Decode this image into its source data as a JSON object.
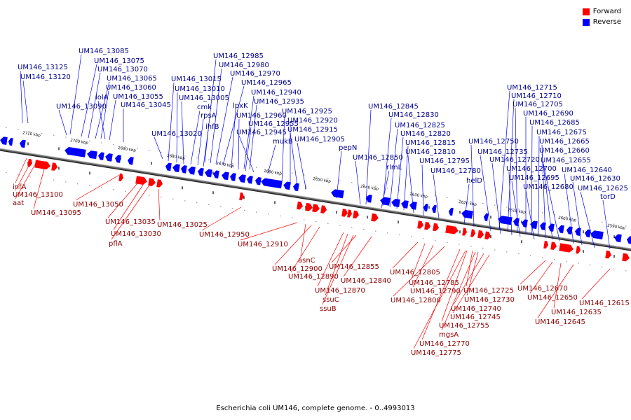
{
  "caption": "Escherichia coli UM146, complete genome. - 0..4993013",
  "legend": {
    "forward": {
      "label": "Forward",
      "color": "#ff0000"
    },
    "reverse": {
      "label": "Reverse",
      "color": "#0000ff"
    }
  },
  "colors": {
    "forward": "#ff0000",
    "reverse": "#0000ff",
    "backbone": "#666666"
  },
  "tick_labels": [
    "2710 kbp",
    "2700 kbp",
    "2690 kbp",
    "2680 kbp",
    "2670 kbp",
    "2660 kbp",
    "2650 kbp",
    "2640 kbp",
    "2630 kbp",
    "2620 kbp",
    "2610 kbp",
    "2600 kbp",
    "2590 kbp"
  ],
  "forward_labels": [
    "infA",
    "UM146_13100",
    "aat",
    "UM146_13095",
    "UM146_13050",
    "UM146_13035",
    "UM146_13030",
    "pflA",
    "UM146_13025",
    "UM146_12950",
    "UM146_12910",
    "asnC",
    "UM146_12900",
    "UM146_12890",
    "UM146_12870",
    "ssuC",
    "ssuB",
    "UM146_12855",
    "UM146_12840",
    "UM146_12805",
    "UM146_12785",
    "UM146_12790",
    "UM146_12800",
    "UM146_12725",
    "UM146_12730",
    "UM146_12740",
    "UM146_12745",
    "UM146_12755",
    "mgsA",
    "UM146_12770",
    "UM146_12775",
    "UM146_12670",
    "UM146_12650",
    "UM146_12635",
    "UM146_12645",
    "UM146_12615"
  ],
  "reverse_labels": [
    "UM146_13125",
    "UM146_13120",
    "UM146_13085",
    "UM146_13075",
    "UM146_13070",
    "UM146_13065",
    "UM146_13060",
    "lolA",
    "UM146_13055",
    "UM146_13090",
    "UM146_13045",
    "UM146_13020",
    "UM146_12985",
    "UM146_12980",
    "UM146_12970",
    "UM146_12965",
    "UM146_13015",
    "UM146_13010",
    "UM146_13005",
    "cmk",
    "rpsA",
    "ihfB",
    "lpxK",
    "UM146_12940",
    "UM146_12935",
    "UM146_12960",
    "UM146_12955",
    "UM146_12945",
    "mukB",
    "UM146_12925",
    "UM146_12920",
    "UM146_12915",
    "UM146_12905",
    "pepN",
    "UM146_12845",
    "UM146_12830",
    "UM146_12825",
    "UM146_12820",
    "UM146_12815",
    "UM146_12810",
    "UM146_12850",
    "rlmL",
    "UM146_12795",
    "UM146_12780",
    "helD",
    "UM146_12715",
    "UM146_12710",
    "UM146_12705",
    "UM146_12690",
    "UM146_12685",
    "UM146_12750",
    "UM146_12675",
    "UM146_12735",
    "UM146_12665",
    "UM146_12660",
    "UM146_12720",
    "UM146_12655",
    "UM146_12700",
    "UM146_12695",
    "UM146_12640",
    "UM146_12680",
    "UM146_12630",
    "UM146_12625",
    "torD"
  ]
}
